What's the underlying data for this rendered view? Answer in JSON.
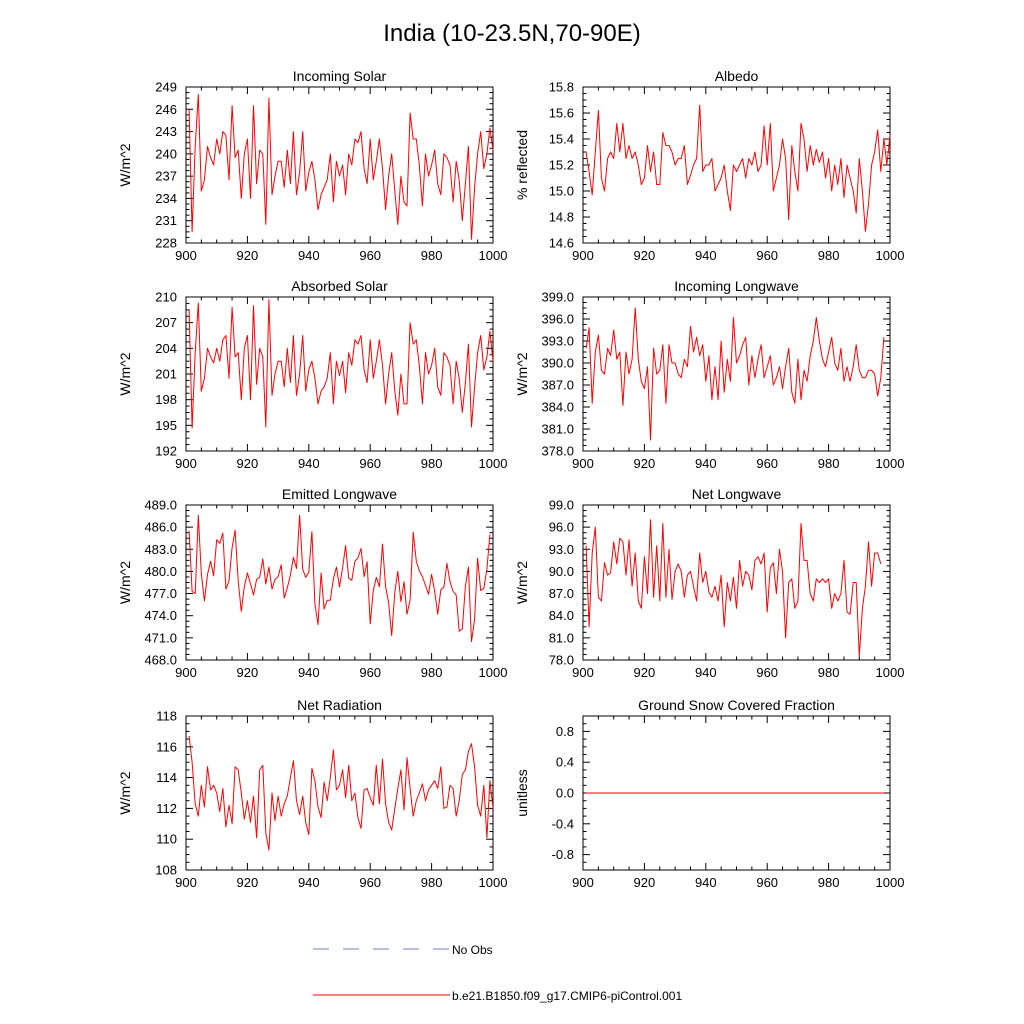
{
  "figure": {
    "title": "India (10-23.5N,70-90E)",
    "legend": [
      {
        "label": "No Obs",
        "color": "#6f7fb8",
        "dash": true
      },
      {
        "label": "b.e21.B1850.f09_g17.CMIP6-piControl.001",
        "color": "#ff0000",
        "dash": false
      }
    ]
  },
  "chart_data": [
    {
      "type": "line",
      "title": "Incoming Solar",
      "ylabel": "W/m^2",
      "xlim": [
        900,
        1000
      ],
      "ylim": [
        228,
        249
      ],
      "xticks": [
        900,
        920,
        940,
        960,
        980,
        1000
      ],
      "yticks": [
        228,
        231,
        234,
        237,
        240,
        243,
        246,
        249
      ],
      "ytick_labels": [
        "228",
        "231",
        "234",
        "237",
        "240",
        "243",
        "246",
        "249"
      ],
      "grid": false,
      "series": [
        {
          "name": "b.e21.B1850.f09_g17.CMIP6-piControl.001",
          "color": "#ff0000",
          "x_start": 901,
          "values": [
            246,
            229.5,
            241,
            248,
            235,
            236.5,
            241,
            239.5,
            238.5,
            242,
            240,
            243,
            242.5,
            236.5,
            246.5,
            239.5,
            240.5,
            234,
            240,
            242,
            234,
            246.5,
            236,
            240.5,
            240,
            230.5,
            247.5,
            234.5,
            237,
            239,
            239,
            235.5,
            240.5,
            236,
            243,
            234.5,
            237.5,
            243,
            235,
            237.5,
            239,
            236.5,
            232.5,
            234.5,
            235.5,
            236.5,
            240,
            233.5,
            239,
            237,
            238.5,
            234.5,
            240,
            238.5,
            242,
            241.5,
            243,
            238,
            236,
            242,
            236.5,
            239,
            242,
            238,
            232.5,
            237,
            240,
            235,
            230.5,
            237,
            233.5,
            233,
            245.5,
            242,
            242,
            238.5,
            233,
            240,
            237,
            238.5,
            240.5,
            236,
            234.5,
            240,
            239.5,
            238.5,
            233.5,
            239,
            236.5,
            231,
            236,
            241,
            228.5,
            235.5,
            240,
            243,
            238,
            240,
            243.5,
            240.5
          ]
        }
      ]
    },
    {
      "type": "line",
      "title": "Albedo",
      "ylabel": "% reflected",
      "xlim": [
        900,
        1000
      ],
      "ylim": [
        14.6,
        15.8
      ],
      "xticks": [
        900,
        920,
        940,
        960,
        980,
        1000
      ],
      "yticks": [
        14.6,
        14.8,
        15.0,
        15.2,
        15.4,
        15.6,
        15.8
      ],
      "ytick_labels": [
        "14.6",
        "14.8",
        "15.0",
        "15.2",
        "15.4",
        "15.6",
        "15.8"
      ],
      "grid": false,
      "series": [
        {
          "name": "b.e21.B1850.f09_g17.CMIP6-piControl.001",
          "color": "#ff0000",
          "x_start": 901,
          "values": [
            15.3,
            15.15,
            14.97,
            15.3,
            15.62,
            15.1,
            15.0,
            15.25,
            15.3,
            15.25,
            15.52,
            15.3,
            15.52,
            15.25,
            15.35,
            15.25,
            15.3,
            15.2,
            15.05,
            15.1,
            15.35,
            15.15,
            15.3,
            15.05,
            15.05,
            15.45,
            15.35,
            15.35,
            15.3,
            15.2,
            15.25,
            15.25,
            15.35,
            15.05,
            15.12,
            15.2,
            15.25,
            15.66,
            15.15,
            15.2,
            15.2,
            15.25,
            15.0,
            15.05,
            15.1,
            15.2,
            15.0,
            14.85,
            15.2,
            15.15,
            15.2,
            15.25,
            15.1,
            15.25,
            15.2,
            15.3,
            15.15,
            15.2,
            15.5,
            15.2,
            15.52,
            15.0,
            15.1,
            15.2,
            15.4,
            15.25,
            14.78,
            15.35,
            15.15,
            15.0,
            15.52,
            15.4,
            15.15,
            15.35,
            15.2,
            15.32,
            15.22,
            15.3,
            15.1,
            15.25,
            15.0,
            15.2,
            15.05,
            15.25,
            14.95,
            15.2,
            15.1,
            15.0,
            14.83,
            15.25,
            15.0,
            14.69,
            14.9,
            15.2,
            15.3,
            15.47,
            15.15,
            15.4,
            15.2,
            15.43
          ]
        }
      ]
    },
    {
      "type": "line",
      "title": "Absorbed Solar",
      "ylabel": "W/m^2",
      "xlim": [
        900,
        1000
      ],
      "ylim": [
        192,
        210
      ],
      "xticks": [
        900,
        920,
        940,
        960,
        980,
        1000
      ],
      "yticks": [
        192,
        195,
        198,
        201,
        204,
        207,
        210
      ],
      "ytick_labels": [
        "192",
        "195",
        "198",
        "201",
        "204",
        "207",
        "210"
      ],
      "grid": false,
      "series": [
        {
          "name": "b.e21.B1850.f09_g17.CMIP6-piControl.001",
          "color": "#ff0000",
          "x_start": 901,
          "values": [
            208.5,
            194.7,
            203.5,
            209.3,
            199,
            200.5,
            204,
            203,
            202.3,
            204,
            202.5,
            205,
            205.5,
            200.5,
            208.8,
            203,
            203.5,
            198,
            204,
            205.5,
            198,
            209,
            199.8,
            204,
            203,
            194.8,
            209.7,
            198.5,
            201,
            202.5,
            202.5,
            199.5,
            204,
            200,
            205.5,
            198.5,
            201,
            205.5,
            199,
            201.5,
            202.5,
            200.5,
            197.5,
            199,
            199.5,
            200.5,
            203.5,
            197.5,
            202.5,
            200.8,
            202.5,
            198.8,
            203.5,
            202,
            205,
            204.5,
            205.5,
            201.5,
            200,
            205,
            200.5,
            202.5,
            205,
            202,
            197.5,
            201,
            203.5,
            199,
            196.2,
            201,
            197.5,
            197.5,
            207,
            204.5,
            205,
            202,
            197.5,
            203.5,
            201,
            202,
            204,
            199.5,
            198.5,
            203.5,
            203,
            202,
            197.5,
            202.5,
            200.5,
            196.5,
            200,
            204.5,
            194.8,
            199.5,
            203.5,
            205.5,
            201.5,
            203,
            206,
            202.5
          ]
        }
      ]
    },
    {
      "type": "line",
      "title": "Incoming Longwave",
      "ylabel": "W/m^2",
      "xlim": [
        900,
        1000
      ],
      "ylim": [
        378,
        399
      ],
      "xticks": [
        900,
        920,
        940,
        960,
        980,
        1000
      ],
      "yticks": [
        378,
        381,
        384,
        387,
        390,
        393,
        396,
        399
      ],
      "ytick_labels": [
        "378.0",
        "381.0",
        "384.0",
        "387.0",
        "390.0",
        "393.0",
        "396.0",
        "399.0"
      ],
      "grid": false,
      "series": [
        {
          "name": "b.e21.B1850.f09_g17.CMIP6-piControl.001",
          "color": "#ff0000",
          "x_start": 901,
          "values": [
            392,
            394.8,
            384.5,
            391.5,
            393.8,
            389,
            388.5,
            392,
            391,
            394.5,
            390.5,
            391.5,
            384.2,
            391.5,
            388.5,
            390.5,
            397.5,
            390.5,
            387.5,
            386.5,
            389.5,
            379.5,
            392,
            388.5,
            389,
            392.5,
            384.5,
            392.5,
            390,
            390,
            388.5,
            388,
            390.5,
            389.5,
            395,
            391.5,
            393.5,
            391,
            392.5,
            387.5,
            391,
            385,
            389.5,
            385,
            393,
            386,
            390.5,
            387.5,
            396.2,
            390,
            391,
            392.5,
            393.5,
            387,
            391,
            388,
            390.5,
            392.5,
            388,
            389.5,
            391,
            387,
            388,
            389.5,
            386.5,
            389.5,
            392,
            386,
            384.5,
            390.5,
            385,
            389,
            387.5,
            391,
            393,
            396.2,
            393,
            390.5,
            389.5,
            391.5,
            393.5,
            390,
            389,
            392,
            387.5,
            389.5,
            387.5,
            389.5,
            392.5,
            389,
            388,
            388,
            389,
            389,
            388.5,
            385.5,
            388,
            393.5
          ]
        }
      ]
    },
    {
      "type": "line",
      "title": "Emitted Longwave",
      "ylabel": "W/m^2",
      "xlim": [
        900,
        1000
      ],
      "ylim": [
        468,
        489
      ],
      "xticks": [
        900,
        920,
        940,
        960,
        980,
        1000
      ],
      "yticks": [
        468,
        471,
        474,
        477,
        480,
        483,
        486,
        489
      ],
      "ytick_labels": [
        "468.0",
        "471.0",
        "474.0",
        "477.0",
        "480.0",
        "483.0",
        "486.0",
        "489.0"
      ],
      "grid": false,
      "series": [
        {
          "name": "b.e21.B1850.f09_g17.CMIP6-piControl.001",
          "color": "#ff0000",
          "x_start": 901,
          "values": [
            485.5,
            477.3,
            477,
            487.6,
            479.7,
            476,
            479.6,
            481.4,
            479.4,
            484.3,
            483.8,
            485.2,
            477.6,
            478.7,
            483.2,
            485.6,
            478.7,
            474.6,
            477.9,
            479.8,
            478.3,
            476.8,
            478.9,
            479.2,
            481.7,
            478.3,
            480.6,
            477.6,
            478.9,
            479.3,
            480.9,
            476.4,
            477.8,
            479.5,
            481.9,
            480.4,
            487.6,
            480.3,
            479.2,
            479.9,
            485.4,
            475.6,
            472.8,
            479.8,
            474.9,
            476.1,
            476.1,
            479,
            480.6,
            477.9,
            480.5,
            483.5,
            479.1,
            478.8,
            481.4,
            481.8,
            483.1,
            479.3,
            481.3,
            472.9,
            477.4,
            479.2,
            477.9,
            483.7,
            477.9,
            475.8,
            471.3,
            477.2,
            480,
            475.9,
            478.6,
            474.2,
            476.1,
            485.3,
            481.4,
            480.1,
            479.3,
            478.1,
            476.9,
            479.6,
            477.3,
            474.2,
            477.5,
            477.9,
            481.1,
            478.6,
            477.3,
            476.8,
            471.9,
            472.2,
            478,
            480.6,
            470.5,
            473.5,
            481.8,
            477.4,
            477.7,
            480.3,
            485
          ]
        }
      ]
    },
    {
      "type": "line",
      "title": "Net Longwave",
      "ylabel": "W/m^2",
      "xlim": [
        900,
        1000
      ],
      "ylim": [
        78,
        99
      ],
      "xticks": [
        900,
        920,
        940,
        960,
        980,
        1000
      ],
      "yticks": [
        78,
        81,
        84,
        87,
        90,
        93,
        96,
        99
      ],
      "ytick_labels": [
        "78.0",
        "81.0",
        "84.0",
        "87.0",
        "90.0",
        "93.0",
        "96.0",
        "99.0"
      ],
      "grid": false,
      "series": [
        {
          "name": "b.e21.B1850.f09_g17.CMIP6-piControl.001",
          "color": "#ff0000",
          "x_start": 901,
          "values": [
            93.5,
            82.5,
            92.5,
            96,
            86.5,
            86,
            91.2,
            89.5,
            89.8,
            94,
            91,
            94.5,
            94,
            89.5,
            94.3,
            88,
            92.5,
            86,
            85,
            92,
            87,
            97,
            86.5,
            93.5,
            86,
            96.5,
            86.5,
            93,
            86.2,
            90,
            91,
            90,
            86.5,
            89.5,
            90,
            88,
            86,
            92.5,
            88.5,
            90,
            87.2,
            86.5,
            88,
            86,
            89.5,
            82.5,
            88.5,
            86,
            89.2,
            85,
            91.5,
            88,
            90,
            89.5,
            87.5,
            91.5,
            92,
            91,
            92.5,
            84.5,
            90.5,
            91.2,
            87,
            93,
            90,
            81,
            88.5,
            89,
            85,
            86,
            96.5,
            91.5,
            91.5,
            87,
            86,
            89,
            88.5,
            89,
            88.5,
            89,
            85,
            87,
            86,
            87,
            91.5,
            84.5,
            84.2,
            88.5,
            88.5,
            78.5,
            85,
            88,
            94,
            88,
            92.5,
            92.5,
            91
          ]
        }
      ]
    },
    {
      "type": "line",
      "title": "Net Radiation",
      "ylabel": "W/m^2",
      "xlim": [
        900,
        1000
      ],
      "ylim": [
        108,
        118
      ],
      "xticks": [
        900,
        920,
        940,
        960,
        980,
        1000
      ],
      "yticks": [
        108,
        110,
        112,
        114,
        116,
        118
      ],
      "ytick_labels": [
        "108",
        "110",
        "112",
        "114",
        "116",
        "118"
      ],
      "grid": false,
      "series": [
        {
          "name": "b.e21.B1850.f09_g17.CMIP6-piControl.001",
          "color": "#ff0000",
          "x_start": 901,
          "values": [
            116.7,
            115,
            112.3,
            111.5,
            113.5,
            112.1,
            114.7,
            113.2,
            113.5,
            113,
            111.8,
            113.3,
            110.8,
            112.2,
            111,
            114.7,
            114.5,
            113,
            111.3,
            112.5,
            111.1,
            112.8,
            110.1,
            114.5,
            114.8,
            110.4,
            109.3,
            113,
            111.2,
            112.8,
            111.5,
            112.3,
            112.8,
            114,
            115.1,
            112.5,
            111.6,
            112.8,
            111.1,
            110.3,
            114.6,
            113.8,
            112.1,
            111.4,
            113.7,
            112.5,
            114,
            115.8,
            113.2,
            113.5,
            114.5,
            112.7,
            114.8,
            112.5,
            113,
            111.4,
            110.7,
            113.2,
            113.3,
            112.7,
            112.2,
            114.8,
            112.3,
            115.2,
            112.3,
            111.1,
            110.6,
            112,
            113.3,
            114.5,
            111.9,
            115.3,
            113.3,
            111.5,
            112.5,
            113,
            113.6,
            112.5,
            113.2,
            113.5,
            113.8,
            113.3,
            114.7,
            112,
            112.1,
            113.5,
            113.3,
            111.5,
            112.5,
            114.2,
            114.5,
            115.7,
            116.2,
            114.7,
            112.2,
            111.5,
            113.5,
            110.1,
            113.8,
            112
          ]
        }
      ]
    },
    {
      "type": "line",
      "title": "Ground Snow Covered Fraction",
      "ylabel": "unitless",
      "xlim": [
        900,
        1000
      ],
      "ylim": [
        -1,
        1
      ],
      "xticks": [
        900,
        920,
        940,
        960,
        980,
        1000
      ],
      "yticks": [
        -0.8,
        -0.4,
        0.0,
        0.4,
        0.8
      ],
      "ytick_labels": [
        "-0.8",
        "-0.4",
        "0.0",
        "0.4",
        "0.8"
      ],
      "grid": false,
      "series": [
        {
          "name": "b.e21.B1850.f09_g17.CMIP6-piControl.001",
          "color": "#ff0000",
          "x": [
            901,
            998
          ],
          "values": [
            0,
            0
          ]
        }
      ]
    }
  ]
}
